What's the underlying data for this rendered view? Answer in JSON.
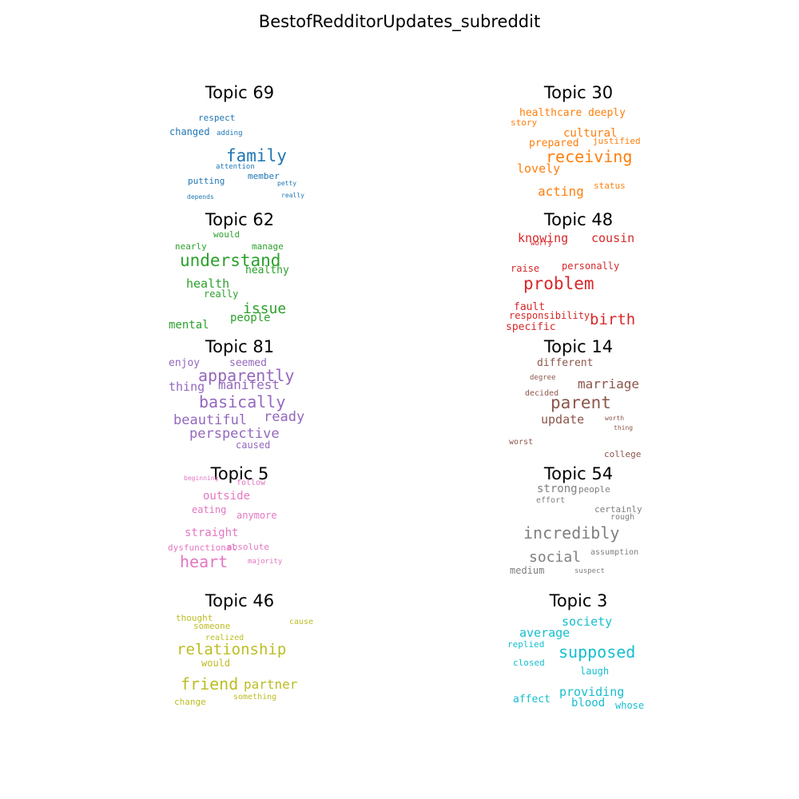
{
  "title": "BestofRedditorUpdates_subreddit",
  "chart_data": {
    "type": "wordcloud",
    "title": "BestofRedditorUpdates_subreddit",
    "topics": [
      {
        "title": "Topic 69",
        "color": "#1f77b4",
        "words": [
          {
            "text": "respect",
            "weight": 0.3
          },
          {
            "text": "changed",
            "weight": 0.4
          },
          {
            "text": "adding",
            "weight": 0.2
          },
          {
            "text": "family",
            "weight": 1.0
          },
          {
            "text": "attention",
            "weight": 0.2
          },
          {
            "text": "member",
            "weight": 0.3
          },
          {
            "text": "putting",
            "weight": 0.3
          },
          {
            "text": "petty",
            "weight": 0.15
          },
          {
            "text": "depends",
            "weight": 0.15
          },
          {
            "text": "really",
            "weight": 0.15
          }
        ]
      },
      {
        "title": "Topic 30",
        "color": "#ff7f0e",
        "words": [
          {
            "text": "healthcare",
            "weight": 0.4
          },
          {
            "text": "deeply",
            "weight": 0.35
          },
          {
            "text": "story",
            "weight": 0.3
          },
          {
            "text": "cultural",
            "weight": 0.45
          },
          {
            "text": "prepared",
            "weight": 0.4
          },
          {
            "text": "justified",
            "weight": 0.3
          },
          {
            "text": "receiving",
            "weight": 1.0
          },
          {
            "text": "lovely",
            "weight": 0.5
          },
          {
            "text": "acting",
            "weight": 0.55
          },
          {
            "text": "status",
            "weight": 0.3
          }
        ]
      },
      {
        "title": "Topic 62",
        "color": "#2ca02c",
        "words": [
          {
            "text": "would",
            "weight": 0.3
          },
          {
            "text": "nearly",
            "weight": 0.35
          },
          {
            "text": "manage",
            "weight": 0.3
          },
          {
            "text": "understand",
            "weight": 1.0
          },
          {
            "text": "healthy",
            "weight": 0.4
          },
          {
            "text": "health",
            "weight": 0.55
          },
          {
            "text": "really",
            "weight": 0.4
          },
          {
            "text": "issue",
            "weight": 0.75
          },
          {
            "text": "people",
            "weight": 0.5
          },
          {
            "text": "mental",
            "weight": 0.5
          }
        ]
      },
      {
        "title": "Topic 48",
        "color": "#d62728",
        "words": [
          {
            "text": "knowing",
            "weight": 0.55
          },
          {
            "text": "worry",
            "weight": 0.25
          },
          {
            "text": "cousin",
            "weight": 0.55
          },
          {
            "text": "raise",
            "weight": 0.35
          },
          {
            "text": "personally",
            "weight": 0.35
          },
          {
            "text": "problem",
            "weight": 1.0
          },
          {
            "text": "fault",
            "weight": 0.45
          },
          {
            "text": "responsibility",
            "weight": 0.4
          },
          {
            "text": "birth",
            "weight": 0.7
          },
          {
            "text": "specific",
            "weight": 0.4
          }
        ]
      },
      {
        "title": "Topic 81",
        "color": "#9467bd",
        "words": [
          {
            "text": "enjoy",
            "weight": 0.45
          },
          {
            "text": "seemed",
            "weight": 0.45
          },
          {
            "text": "apparently",
            "weight": 1.0
          },
          {
            "text": "thing",
            "weight": 0.6
          },
          {
            "text": "manifest",
            "weight": 0.65
          },
          {
            "text": "basically",
            "weight": 1.0
          },
          {
            "text": "beautiful",
            "weight": 0.7
          },
          {
            "text": "ready",
            "weight": 0.75
          },
          {
            "text": "perspective",
            "weight": 0.75
          },
          {
            "text": "caused",
            "weight": 0.45
          }
        ]
      },
      {
        "title": "Topic 14",
        "color": "#8c564b",
        "words": [
          {
            "text": "different",
            "weight": 0.45
          },
          {
            "text": "degree",
            "weight": 0.2
          },
          {
            "text": "marriage",
            "weight": 0.65
          },
          {
            "text": "decided",
            "weight": 0.3
          },
          {
            "text": "parent",
            "weight": 1.0
          },
          {
            "text": "worth",
            "weight": 0.2
          },
          {
            "text": "update",
            "weight": 0.65
          },
          {
            "text": "thing",
            "weight": 0.2
          },
          {
            "text": "worst",
            "weight": 0.3
          },
          {
            "text": "college",
            "weight": 0.35
          }
        ]
      },
      {
        "title": "Topic 5",
        "color": "#e377c2",
        "words": [
          {
            "text": "beginning",
            "weight": 0.2
          },
          {
            "text": "follow",
            "weight": 0.3
          },
          {
            "text": "outside",
            "weight": 0.55
          },
          {
            "text": "eating",
            "weight": 0.4
          },
          {
            "text": "anymore",
            "weight": 0.45
          },
          {
            "text": "straight",
            "weight": 0.5
          },
          {
            "text": "dysfunctional",
            "weight": 0.3
          },
          {
            "text": "absolute",
            "weight": 0.35
          },
          {
            "text": "heart",
            "weight": 1.0
          },
          {
            "text": "majority",
            "weight": 0.2
          }
        ]
      },
      {
        "title": "Topic 54",
        "color": "#7f7f7f",
        "words": [
          {
            "text": "strong",
            "weight": 0.5
          },
          {
            "text": "people",
            "weight": 0.4
          },
          {
            "text": "effort",
            "weight": 0.3
          },
          {
            "text": "certainly",
            "weight": 0.4
          },
          {
            "text": "rough",
            "weight": 0.3
          },
          {
            "text": "incredibly",
            "weight": 1.0
          },
          {
            "text": "assumption",
            "weight": 0.3
          },
          {
            "text": "social",
            "weight": 0.75
          },
          {
            "text": "medium",
            "weight": 0.45
          },
          {
            "text": "suspect",
            "weight": 0.25
          }
        ]
      },
      {
        "title": "Topic 46",
        "color": "#bcbd22",
        "words": [
          {
            "text": "thought",
            "weight": 0.35
          },
          {
            "text": "someone",
            "weight": 0.35
          },
          {
            "text": "cause",
            "weight": 0.3
          },
          {
            "text": "realized",
            "weight": 0.3
          },
          {
            "text": "relationship",
            "weight": 1.0
          },
          {
            "text": "would",
            "weight": 0.45
          },
          {
            "text": "friend",
            "weight": 0.95
          },
          {
            "text": "partner",
            "weight": 0.7
          },
          {
            "text": "change",
            "weight": 0.4
          },
          {
            "text": "something",
            "weight": 0.35
          }
        ]
      },
      {
        "title": "Topic 3",
        "color": "#17becf",
        "words": [
          {
            "text": "society",
            "weight": 0.75
          },
          {
            "text": "average",
            "weight": 0.7
          },
          {
            "text": "replied",
            "weight": 0.4
          },
          {
            "text": "supposed",
            "weight": 1.0
          },
          {
            "text": "closed",
            "weight": 0.4
          },
          {
            "text": "laugh",
            "weight": 0.45
          },
          {
            "text": "providing",
            "weight": 0.7
          },
          {
            "text": "affect",
            "weight": 0.55
          },
          {
            "text": "blood",
            "weight": 0.55
          },
          {
            "text": "whose",
            "weight": 0.45
          }
        ]
      }
    ]
  }
}
